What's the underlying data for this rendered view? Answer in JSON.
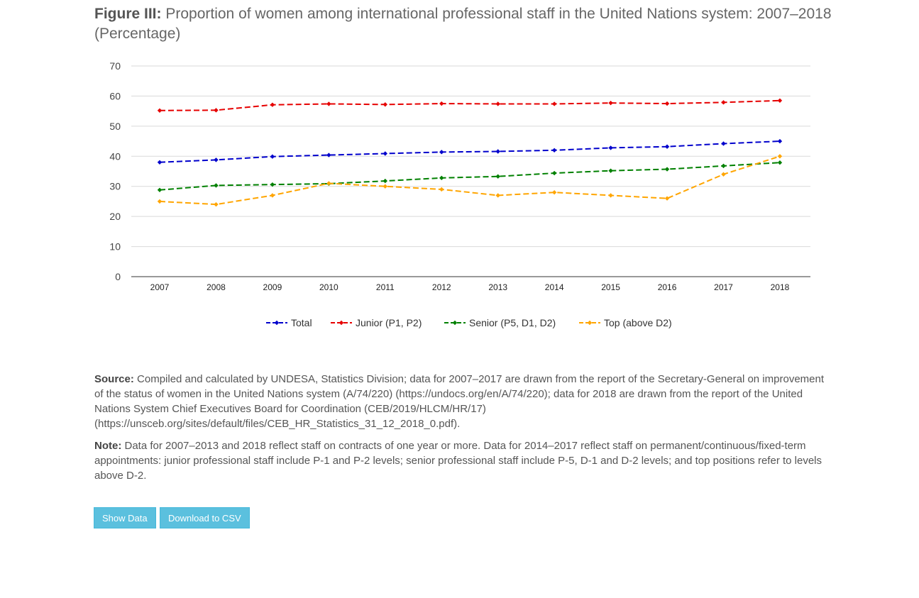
{
  "title": {
    "prefix": "Figure III:",
    "text": "Proportion of women among international professional staff in the United Nations system: 2007–2018 (Percentage)"
  },
  "chart_data": {
    "type": "line",
    "x": [
      "2007",
      "2008",
      "2009",
      "2010",
      "2011",
      "2012",
      "2013",
      "2014",
      "2015",
      "2016",
      "2017",
      "2018"
    ],
    "ylim": [
      0,
      70
    ],
    "yticks": [
      0,
      10,
      20,
      30,
      40,
      50,
      60,
      70
    ],
    "grid": true,
    "legend_position": "bottom",
    "series": [
      {
        "name": "Total",
        "color": "#0000cc",
        "values": [
          38.0,
          38.8,
          39.9,
          40.4,
          40.9,
          41.4,
          41.6,
          42.0,
          42.8,
          43.2,
          44.2,
          45.0
        ]
      },
      {
        "name": "Junior (P1, P2)",
        "color": "#e60000",
        "values": [
          55.2,
          55.3,
          57.1,
          57.4,
          57.2,
          57.5,
          57.4,
          57.4,
          57.7,
          57.5,
          57.9,
          58.5
        ]
      },
      {
        "name": "Senior (P5, D1, D2)",
        "color": "#008000",
        "values": [
          28.8,
          30.3,
          30.6,
          30.9,
          31.8,
          32.8,
          33.3,
          34.4,
          35.2,
          35.7,
          36.8,
          37.9
        ]
      },
      {
        "name": "Top (above D2)",
        "color": "#ffa500",
        "values": [
          25.0,
          24.0,
          27.0,
          31.0,
          30.0,
          29.0,
          27.0,
          28.0,
          27.0,
          26.0,
          34.0,
          40.0
        ]
      }
    ]
  },
  "notes": {
    "source_label": "Source:",
    "source_text": "Compiled and calculated by UNDESA, Statistics Division; data for 2007–2017 are drawn from the report of the Secretary-General on improvement of the status of women in the United Nations system (A/74/220) (https://undocs.org/en/A/74/220); data for 2018 are drawn from the report of the United Nations System Chief Executives Board for Coordination (CEB/2019/HLCM/HR/17) (https://unsceb.org/sites/default/files/CEB_HR_Statistics_31_12_2018_0.pdf).",
    "note_label": "Note:",
    "note_text": "Data for 2007–2013 and 2018 reflect staff on contracts of one year or more. Data for 2014–2017 reflect staff on permanent/continuous/fixed-term appointments: junior professional staff include P-1 and P-2 levels; senior professional staff include P-5, D-1 and D-2 levels; and top positions refer to levels above D-2."
  },
  "buttons": {
    "show_data": "Show Data",
    "download_csv": "Download to CSV"
  }
}
